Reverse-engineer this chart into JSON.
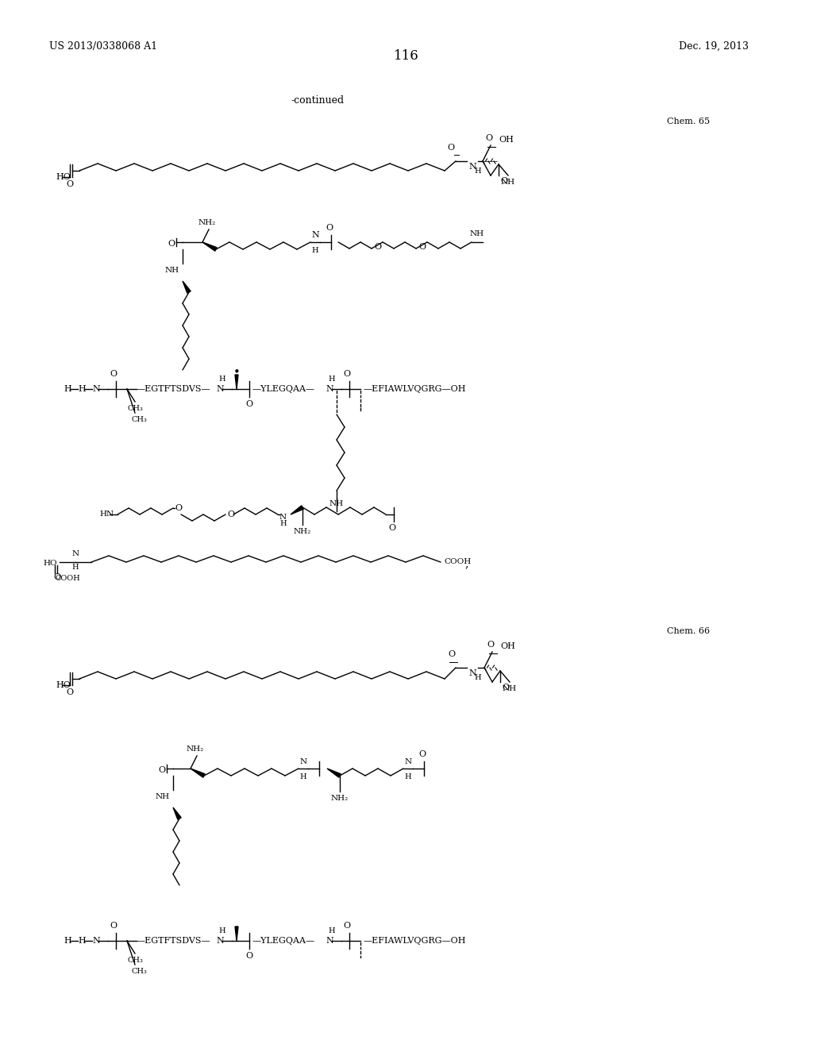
{
  "page_number": "116",
  "patent_number": "US 2013/0338068 A1",
  "patent_date": "Dec. 19, 2013",
  "continued_label": "-continued",
  "chem65_label": "Chem. 65",
  "chem66_label": "Chem. 66",
  "background_color": "#ffffff",
  "text_color": "#000000"
}
